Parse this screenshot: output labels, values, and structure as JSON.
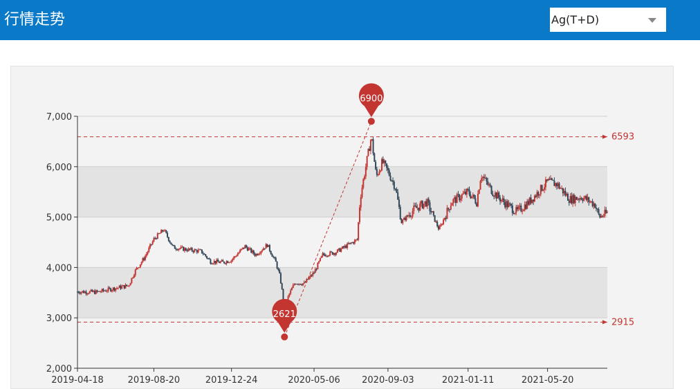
{
  "header": {
    "title": "行情走势",
    "symbol_select": {
      "value": "Ag(T+D)"
    }
  },
  "colors": {
    "header_bg": "#0a7ac8",
    "up": "#c23531",
    "down": "#314656",
    "band": "#e3e3e3",
    "reference": "#c23531"
  },
  "chart_data": {
    "type": "candlestick",
    "x_ticks": [
      "2019-04-18",
      "2019-08-20",
      "2019-12-24",
      "2020-05-06",
      "2020-09-03",
      "2021-01-11",
      "2021-05-20"
    ],
    "x_range": [
      "2019-04-18",
      "2021-08-25"
    ],
    "y_ticks": [
      "2,000",
      "3,000",
      "4,000",
      "5,000",
      "6,000",
      "7,000"
    ],
    "ylim": [
      2000,
      7000
    ],
    "reference_lines": [
      {
        "label": "6593",
        "value": 6593
      },
      {
        "label": "2915",
        "value": 2915
      }
    ],
    "markers": [
      {
        "label": "6900",
        "date": "2020-08-07",
        "value": 6900,
        "kind": "max"
      },
      {
        "label": "2621",
        "date": "2020-03-19",
        "value": 2621,
        "kind": "min"
      }
    ],
    "trend_line": {
      "from": "2020-03-19",
      "to": "2020-08-07"
    },
    "grid_bands": true,
    "keypoints": [
      [
        "2019-04-18",
        3520
      ],
      [
        "2019-05-20",
        3510
      ],
      [
        "2019-06-15",
        3580
      ],
      [
        "2019-07-10",
        3640
      ],
      [
        "2019-07-20",
        3920
      ],
      [
        "2019-08-05",
        4200
      ],
      [
        "2019-08-20",
        4560
      ],
      [
        "2019-09-05",
        4750
      ],
      [
        "2019-09-20",
        4400
      ],
      [
        "2019-10-15",
        4350
      ],
      [
        "2019-11-05",
        4320
      ],
      [
        "2019-11-20",
        4120
      ],
      [
        "2019-12-10",
        4100
      ],
      [
        "2019-12-24",
        4150
      ],
      [
        "2020-01-15",
        4420
      ],
      [
        "2020-02-01",
        4250
      ],
      [
        "2020-02-20",
        4450
      ],
      [
        "2020-03-05",
        4100
      ],
      [
        "2020-03-12",
        3800
      ],
      [
        "2020-03-19",
        3200
      ],
      [
        "2020-03-26",
        3450
      ],
      [
        "2020-04-05",
        3700
      ],
      [
        "2020-04-20",
        3680
      ],
      [
        "2020-05-06",
        3900
      ],
      [
        "2020-05-20",
        4250
      ],
      [
        "2020-06-10",
        4300
      ],
      [
        "2020-07-05",
        4480
      ],
      [
        "2020-07-15",
        4550
      ],
      [
        "2020-07-20",
        5400
      ],
      [
        "2020-08-07",
        6600
      ],
      [
        "2020-08-15",
        5800
      ],
      [
        "2020-08-25",
        6100
      ],
      [
        "2020-09-03",
        5900
      ],
      [
        "2020-09-15",
        5600
      ],
      [
        "2020-09-25",
        4900
      ],
      [
        "2020-10-15",
        5150
      ],
      [
        "2020-11-05",
        5300
      ],
      [
        "2020-11-25",
        4750
      ],
      [
        "2020-12-15",
        5300
      ],
      [
        "2021-01-11",
        5500
      ],
      [
        "2021-01-25",
        5300
      ],
      [
        "2021-02-01",
        5850
      ],
      [
        "2021-02-20",
        5500
      ],
      [
        "2021-03-10",
        5300
      ],
      [
        "2021-03-31",
        5100
      ],
      [
        "2021-04-20",
        5300
      ],
      [
        "2021-05-20",
        5700
      ],
      [
        "2021-06-05",
        5650
      ],
      [
        "2021-06-25",
        5350
      ],
      [
        "2021-07-15",
        5400
      ],
      [
        "2021-08-05",
        5250
      ],
      [
        "2021-08-12",
        5000
      ],
      [
        "2021-08-25",
        5080
      ]
    ]
  }
}
